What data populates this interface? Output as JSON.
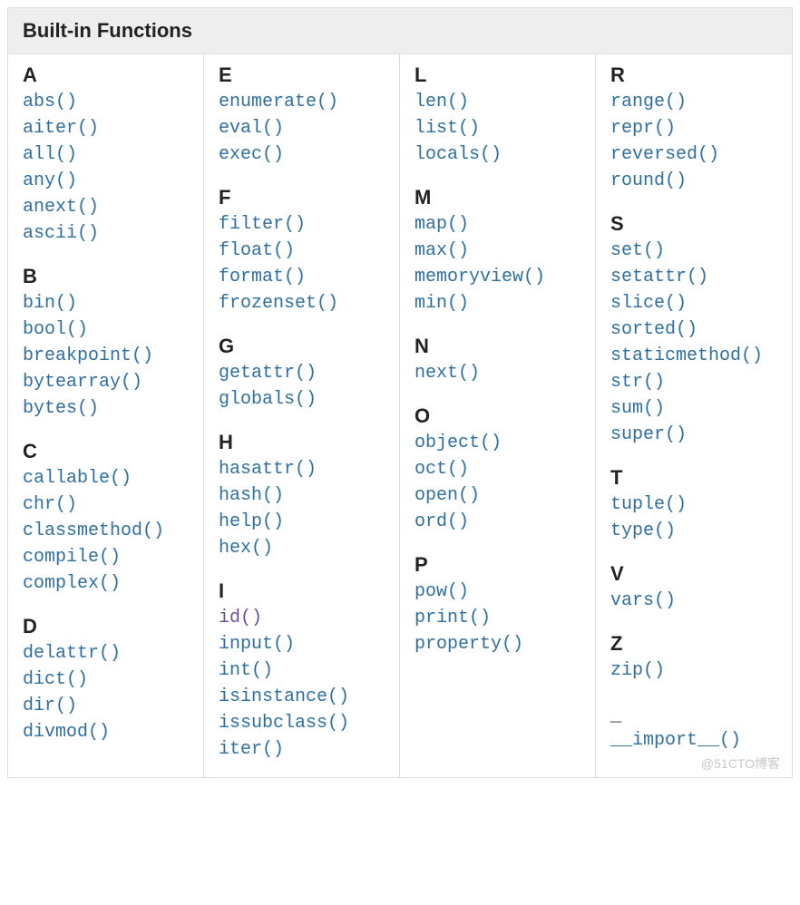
{
  "title": "Built-in Functions",
  "watermark": "@51CTO博客",
  "link_color": "#2f6f9f",
  "visited_color": "#6b4f9a",
  "header_bg": "#eeeeee",
  "border_color": "#dcdcdc",
  "font_mono": "Courier New",
  "columns": [
    [
      {
        "letter": "A",
        "fns": [
          "abs()",
          "aiter()",
          "all()",
          "any()",
          "anext()",
          "ascii()"
        ]
      },
      {
        "letter": "B",
        "fns": [
          "bin()",
          "bool()",
          "breakpoint()",
          "bytearray()",
          "bytes()"
        ]
      },
      {
        "letter": "C",
        "fns": [
          "callable()",
          "chr()",
          "classmethod()",
          "compile()",
          "complex()"
        ]
      },
      {
        "letter": "D",
        "fns": [
          "delattr()",
          "dict()",
          "dir()",
          "divmod()"
        ]
      }
    ],
    [
      {
        "letter": "E",
        "fns": [
          "enumerate()",
          "eval()",
          "exec()"
        ]
      },
      {
        "letter": "F",
        "fns": [
          "filter()",
          "float()",
          "format()",
          "frozenset()"
        ]
      },
      {
        "letter": "G",
        "fns": [
          "getattr()",
          "globals()"
        ]
      },
      {
        "letter": "H",
        "fns": [
          "hasattr()",
          "hash()",
          "help()",
          "hex()"
        ]
      },
      {
        "letter": "I",
        "fns": [
          "id()",
          "input()",
          "int()",
          "isinstance()",
          "issubclass()",
          "iter()"
        ],
        "visited": [
          "id()"
        ]
      }
    ],
    [
      {
        "letter": "L",
        "fns": [
          "len()",
          "list()",
          "locals()"
        ]
      },
      {
        "letter": "M",
        "fns": [
          "map()",
          "max()",
          "memoryview()",
          "min()"
        ]
      },
      {
        "letter": "N",
        "fns": [
          "next()"
        ]
      },
      {
        "letter": "O",
        "fns": [
          "object()",
          "oct()",
          "open()",
          "ord()"
        ]
      },
      {
        "letter": "P",
        "fns": [
          "pow()",
          "print()",
          "property()"
        ]
      }
    ],
    [
      {
        "letter": "R",
        "fns": [
          "range()",
          "repr()",
          "reversed()",
          "round()"
        ]
      },
      {
        "letter": "S",
        "fns": [
          "set()",
          "setattr()",
          "slice()",
          "sorted()",
          "staticmethod()",
          "str()",
          "sum()",
          "super()"
        ]
      },
      {
        "letter": "T",
        "fns": [
          "tuple()",
          "type()"
        ]
      },
      {
        "letter": "V",
        "fns": [
          "vars()"
        ]
      },
      {
        "letter": "Z",
        "fns": [
          "zip()"
        ]
      },
      {
        "letter": "_",
        "fns": [
          "__import__()"
        ]
      }
    ]
  ]
}
